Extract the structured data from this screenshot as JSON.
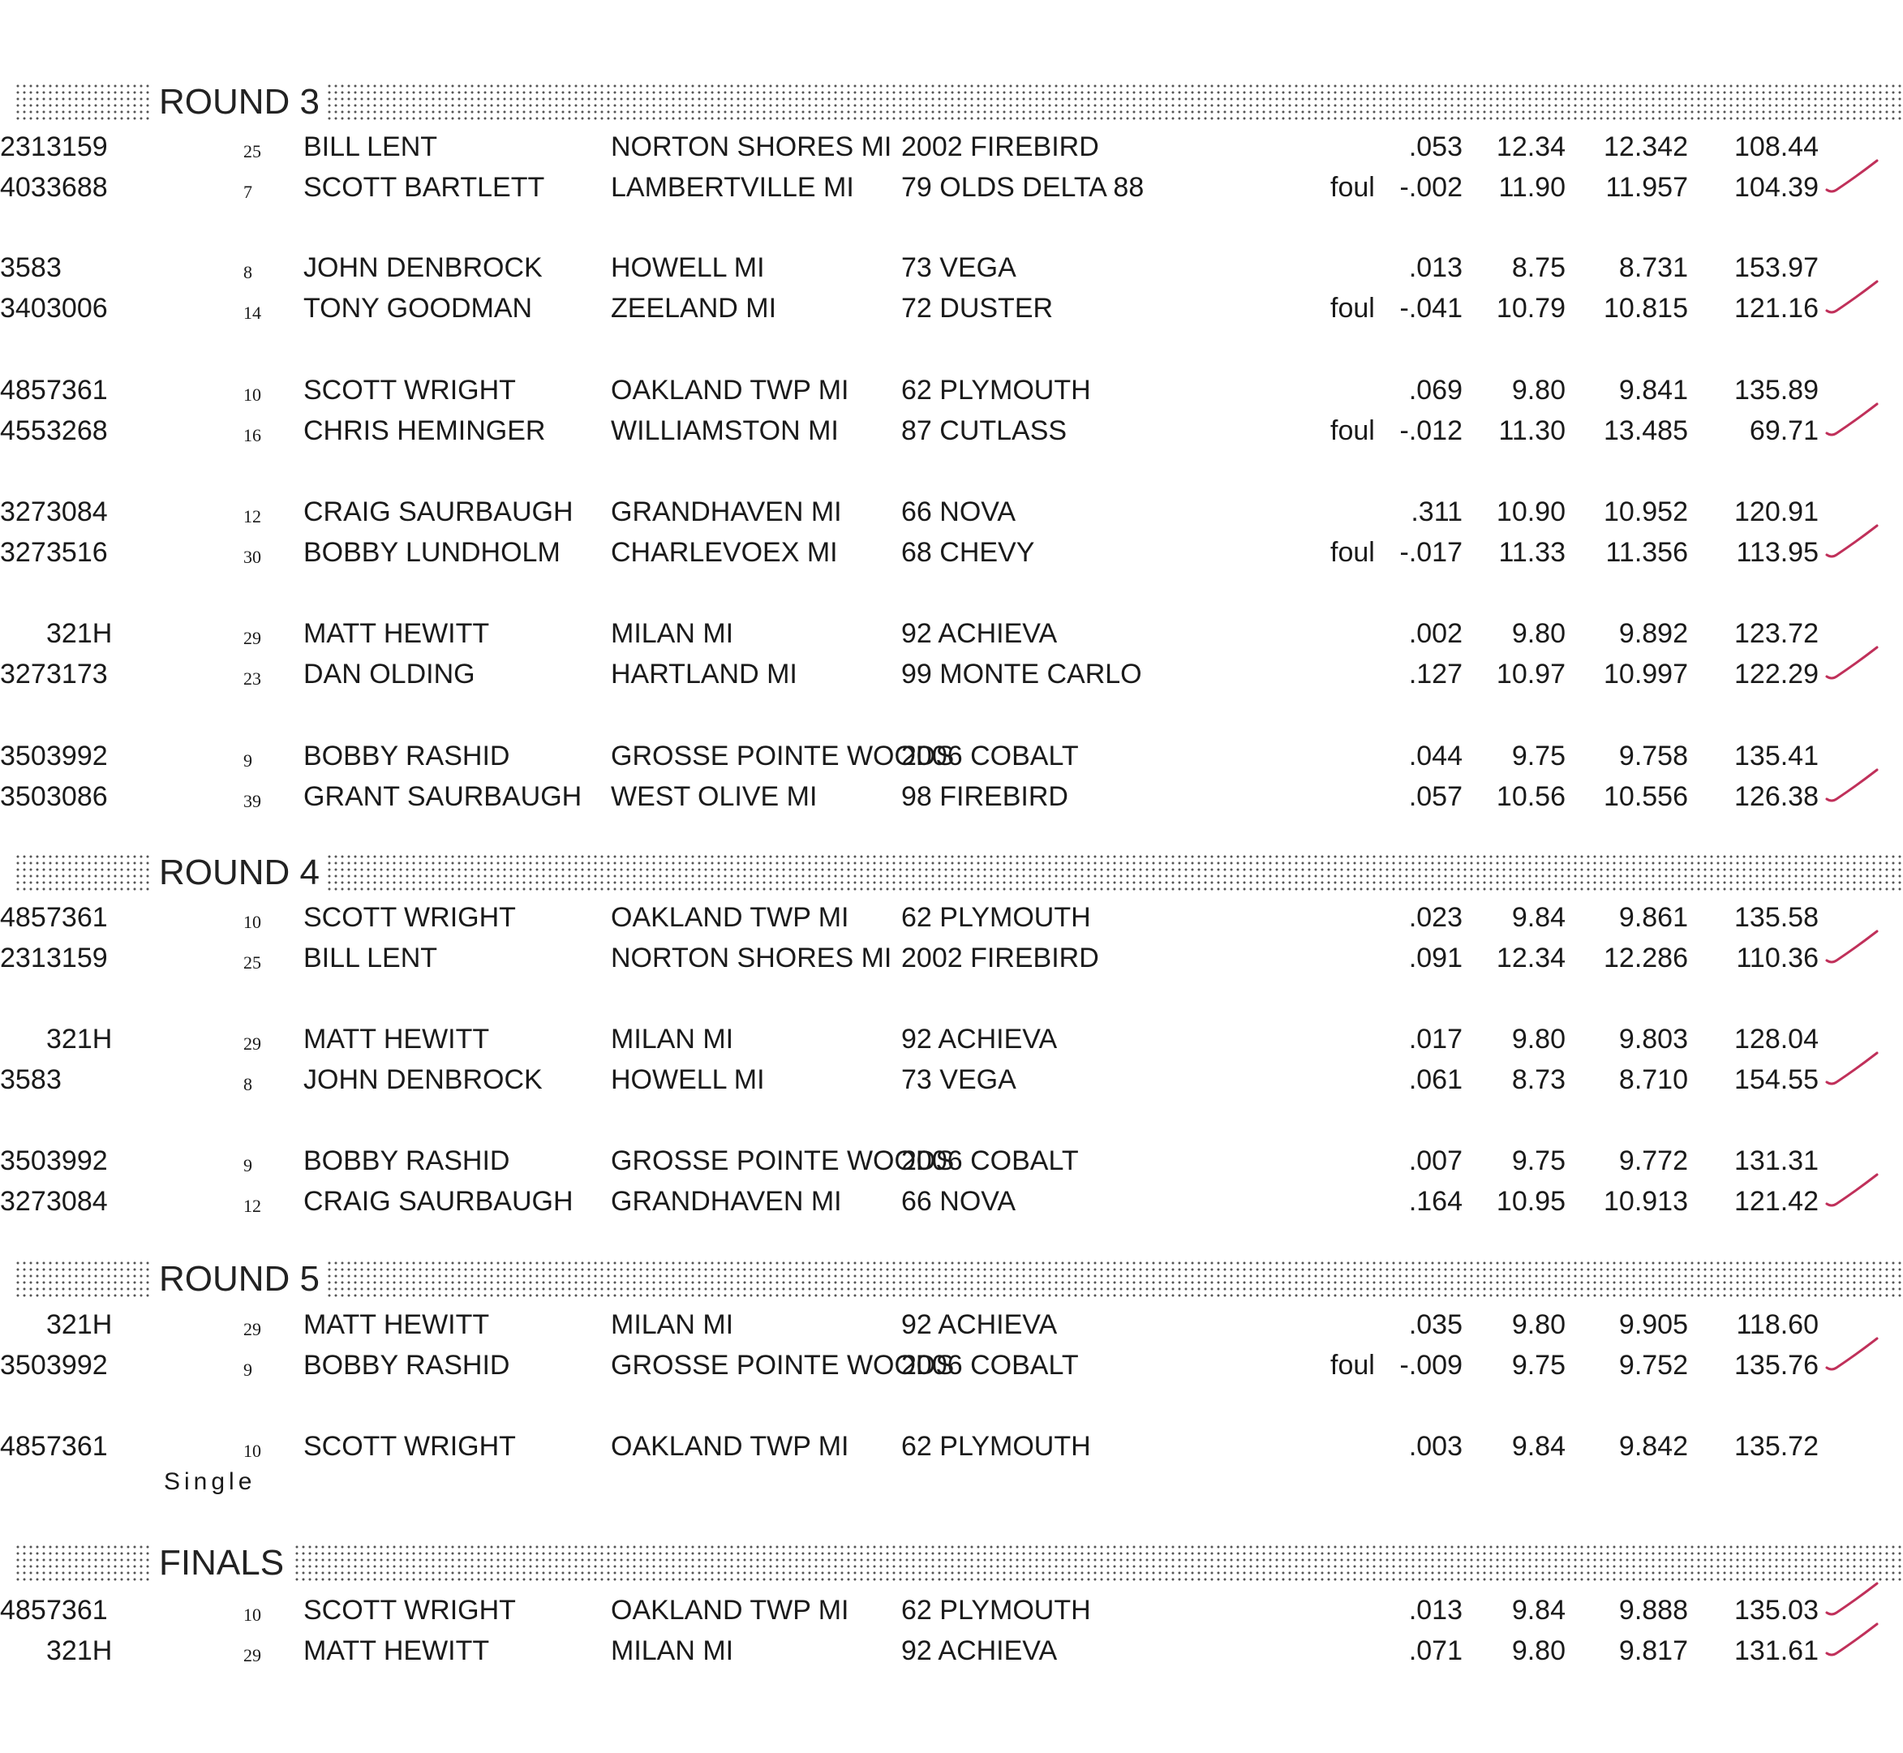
{
  "sections": [
    {
      "title": "ROUND 3",
      "rows": [
        {
          "num": "3159",
          "seed": "25",
          "name": "BILL LENT",
          "city": "NORTON SHORES MI",
          "car": "2002 FIREBIRD",
          "engine": "231",
          "foul": "",
          "rt": ".053",
          "dial": "12.34",
          "et": "12.342",
          "mph": "108.44",
          "check": false
        },
        {
          "num": "3688",
          "seed": "7",
          "name": "SCOTT BARTLETT",
          "city": "LAMBERTVILLE MI",
          "car": "79 OLDS DELTA 88",
          "engine": "403",
          "foul": "foul",
          "rt": "-.002",
          "dial": "11.90",
          "et": "11.957",
          "mph": "104.39",
          "check": true
        },
        {
          "num": "3",
          "seed": "8",
          "name": "JOHN DENBROCK",
          "city": "HOWELL MI",
          "car": "73 VEGA",
          "engine": "358",
          "foul": "",
          "rt": ".013",
          "dial": "8.75",
          "et": "8.731",
          "mph": "153.97",
          "check": false
        },
        {
          "num": "3006",
          "seed": "14",
          "name": "TONY GOODMAN",
          "city": "ZEELAND MI",
          "car": "72 DUSTER",
          "engine": "340",
          "foul": "foul",
          "rt": "-.041",
          "dial": "10.79",
          "et": "10.815",
          "mph": "121.16",
          "check": true
        },
        {
          "num": "7361",
          "seed": "10",
          "name": "SCOTT WRIGHT",
          "city": "OAKLAND TWP  MI",
          "car": "62 PLYMOUTH",
          "engine": "485",
          "foul": "",
          "rt": ".069",
          "dial": "9.80",
          "et": "9.841",
          "mph": "135.89",
          "check": false
        },
        {
          "num": "3268",
          "seed": "16",
          "name": "CHRIS HEMINGER",
          "city": "WILLIAMSTON MI",
          "car": "87 CUTLASS",
          "engine": "455",
          "foul": "foul",
          "rt": "-.012",
          "dial": "11.30",
          "et": "13.485",
          "mph": "69.71",
          "check": true
        },
        {
          "num": "3084",
          "seed": "12",
          "name": "CRAIG SAURBAUGH",
          "city": "GRANDHAVEN MI",
          "car": "66 NOVA",
          "engine": "327",
          "foul": "",
          "rt": ".311",
          "dial": "10.90",
          "et": "10.952",
          "mph": "120.91",
          "check": false
        },
        {
          "num": "3516",
          "seed": "30",
          "name": "BOBBY LUNDHOLM",
          "city": "CHARLEVOEX MI",
          "car": "68 CHEVY",
          "engine": "327",
          "foul": "foul",
          "rt": "-.017",
          "dial": "11.33",
          "et": "11.356",
          "mph": "113.95",
          "check": true
        },
        {
          "num": "321H",
          "seed": "29",
          "name": "MATT HEWITT",
          "city": "MILAN MI",
          "car": "92 ACHIEVA",
          "engine": "",
          "foul": "",
          "rt": ".002",
          "dial": "9.80",
          "et": "9.892",
          "mph": "123.72",
          "check": false
        },
        {
          "num": "3173",
          "seed": "23",
          "name": "DAN OLDING",
          "city": "HARTLAND MI",
          "car": "99 MONTE CARLO",
          "engine": "327",
          "foul": "",
          "rt": ".127",
          "dial": "10.97",
          "et": "10.997",
          "mph": "122.29",
          "check": true
        },
        {
          "num": "3992",
          "seed": "9",
          "name": "BOBBY RASHID",
          "city": "GROSSE POINTE WOODS",
          "car": "2006 COBALT",
          "engine": "350",
          "foul": "",
          "rt": ".044",
          "dial": "9.75",
          "et": "9.758",
          "mph": "135.41",
          "check": false
        },
        {
          "num": "3086",
          "seed": "39",
          "name": "GRANT SAURBAUGH",
          "city": "WEST OLIVE MI",
          "car": "98 FIREBIRD",
          "engine": "350",
          "foul": "",
          "rt": ".057",
          "dial": "10.56",
          "et": "10.556",
          "mph": "126.38",
          "check": true
        }
      ]
    },
    {
      "title": "ROUND 4",
      "rows": [
        {
          "num": "7361",
          "seed": "10",
          "name": "SCOTT WRIGHT",
          "city": "OAKLAND TWP  MI",
          "car": "62 PLYMOUTH",
          "engine": "485",
          "foul": "",
          "rt": ".023",
          "dial": "9.84",
          "et": "9.861",
          "mph": "135.58",
          "check": false
        },
        {
          "num": "3159",
          "seed": "25",
          "name": "BILL LENT",
          "city": "NORTON SHORES MI",
          "car": "2002 FIREBIRD",
          "engine": "231",
          "foul": "",
          "rt": ".091",
          "dial": "12.34",
          "et": "12.286",
          "mph": "110.36",
          "check": true
        },
        {
          "num": "321H",
          "seed": "29",
          "name": "MATT HEWITT",
          "city": "MILAN MI",
          "car": "92 ACHIEVA",
          "engine": "",
          "foul": "",
          "rt": ".017",
          "dial": "9.80",
          "et": "9.803",
          "mph": "128.04",
          "check": false
        },
        {
          "num": "3",
          "seed": "8",
          "name": "JOHN DENBROCK",
          "city": "HOWELL MI",
          "car": "73 VEGA",
          "engine": "358",
          "foul": "",
          "rt": ".061",
          "dial": "8.73",
          "et": "8.710",
          "mph": "154.55",
          "check": true
        },
        {
          "num": "3992",
          "seed": "9",
          "name": "BOBBY RASHID",
          "city": "GROSSE POINTE WOODS",
          "car": "2006 COBALT",
          "engine": "350",
          "foul": "",
          "rt": ".007",
          "dial": "9.75",
          "et": "9.772",
          "mph": "131.31",
          "check": false
        },
        {
          "num": "3084",
          "seed": "12",
          "name": "CRAIG SAURBAUGH",
          "city": "GRANDHAVEN MI",
          "car": "66 NOVA",
          "engine": "327",
          "foul": "",
          "rt": ".164",
          "dial": "10.95",
          "et": "10.913",
          "mph": "121.42",
          "check": true
        }
      ]
    },
    {
      "title": "ROUND 5",
      "rows": [
        {
          "num": "321H",
          "seed": "29",
          "name": "MATT HEWITT",
          "city": "MILAN MI",
          "car": "92 ACHIEVA",
          "engine": "",
          "foul": "",
          "rt": ".035",
          "dial": "9.80",
          "et": "9.905",
          "mph": "118.60",
          "check": false
        },
        {
          "num": "3992",
          "seed": "9",
          "name": "BOBBY RASHID",
          "city": "GROSSE POINTE WOODS",
          "car": "2006 COBALT",
          "engine": "350",
          "foul": "foul",
          "rt": "-.009",
          "dial": "9.75",
          "et": "9.752",
          "mph": "135.76",
          "check": true
        },
        {
          "num": "7361",
          "seed": "10",
          "name": "SCOTT WRIGHT",
          "city": "OAKLAND TWP  MI",
          "car": "62 PLYMOUTH",
          "engine": "485",
          "foul": "",
          "rt": ".003",
          "dial": "9.84",
          "et": "9.842",
          "mph": "135.72",
          "check": false
        }
      ],
      "note": "Single"
    },
    {
      "title": "FINALS",
      "rows": [
        {
          "num": "7361",
          "seed": "10",
          "name": "SCOTT WRIGHT",
          "city": "OAKLAND TWP  MI",
          "car": "62 PLYMOUTH",
          "engine": "485",
          "foul": "",
          "rt": ".013",
          "dial": "9.84",
          "et": "9.888",
          "mph": "135.03",
          "check": true
        },
        {
          "num": "321H",
          "seed": "29",
          "name": "MATT HEWITT",
          "city": "MILAN MI",
          "car": "92 ACHIEVA",
          "engine": "",
          "foul": "",
          "rt": ".071",
          "dial": "9.80",
          "et": "9.817",
          "mph": "131.61",
          "check": true
        }
      ]
    }
  ],
  "colors": {
    "check_mark": "#c0305a",
    "text": "#1a1a1a"
  }
}
